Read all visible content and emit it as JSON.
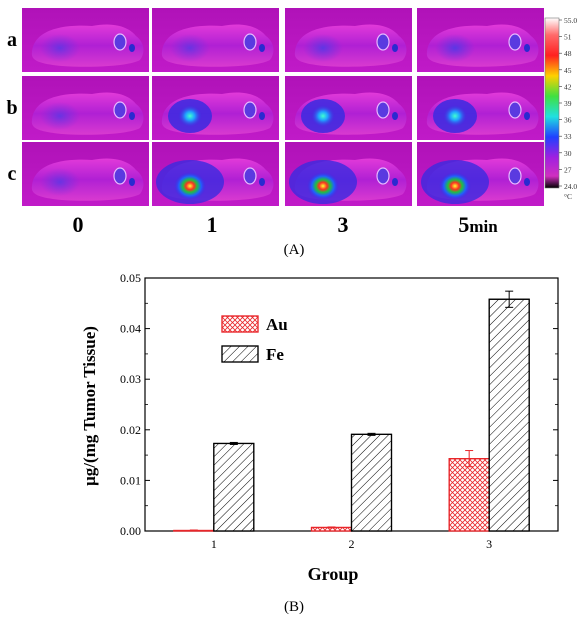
{
  "panel_a": {
    "row_labels": [
      "a",
      "b",
      "c"
    ],
    "time_labels": [
      "0",
      "1",
      "3",
      "5"
    ],
    "time_unit": "min",
    "caption": "(A)",
    "colorbar": {
      "ticks": [
        "55.0",
        "51",
        "48",
        "45",
        "42",
        "39",
        "36",
        "33",
        "30",
        "27",
        "24.0"
      ],
      "unit": "°C"
    },
    "hotspot_intensity": [
      [
        0,
        0,
        0.1,
        0.15
      ],
      [
        0,
        0.55,
        0.62,
        0.6
      ],
      [
        0,
        1.0,
        0.95,
        0.92
      ]
    ]
  },
  "chart_data": {
    "type": "bar",
    "xlabel": "Group",
    "ylabel": "μg/(mg Tumor Tissue)",
    "categories": [
      "1",
      "2",
      "3"
    ],
    "ylim": [
      0,
      0.05
    ],
    "yticks": [
      "0.00",
      "0.01",
      "0.02",
      "0.03",
      "0.04",
      "0.05"
    ],
    "series": [
      {
        "name": "Au",
        "values": [
          0.0001,
          0.0007,
          0.0143
        ],
        "errors": [
          0.0001,
          0.0001,
          0.0016
        ],
        "color": "#e8262a"
      },
      {
        "name": "Fe",
        "values": [
          0.0173,
          0.0191,
          0.0458
        ],
        "errors": [
          0.0002,
          0.0002,
          0.0016
        ],
        "color": "#000000"
      }
    ],
    "legend_position": "top-left"
  },
  "panel_b": {
    "caption": "(B)"
  }
}
